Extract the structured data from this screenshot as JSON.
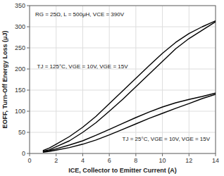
{
  "chart_data": {
    "type": "line",
    "xlabel": "ICE, Collector to Emitter Current (A)",
    "ylabel": "EOFF, Turn-Off Energy Loss (μJ)",
    "annotations": [
      "RG = 25Ω, L = 500μH, VCE = 390V",
      "TJ = 125°C, VGE = 10V, VGE = 15V",
      "TJ = 25°C, VGE = 10V, VGE = 15V"
    ],
    "x": [
      1.0,
      1.5,
      2.0,
      3.0,
      4.0,
      5.0,
      6.0,
      7.0,
      8.0,
      9.0,
      10.0,
      11.0,
      12.0,
      13.0,
      14.0
    ],
    "series": [
      {
        "color": "#000000",
        "values": [
          5,
          9,
          16,
          30,
          50,
          73,
          100,
          128,
          158,
          188,
          218,
          248,
          272,
          292,
          312
        ]
      },
      {
        "color": "#000000",
        "values": [
          7,
          13,
          22,
          40,
          62,
          88,
          118,
          148,
          178,
          208,
          237,
          263,
          284,
          300,
          314
        ]
      },
      {
        "color": "#000000",
        "values": [
          3,
          5,
          8,
          14,
          22,
          32,
          44,
          57,
          70,
          83,
          95,
          107,
          118,
          130,
          140
        ]
      },
      {
        "color": "#000000",
        "values": [
          4,
          7,
          11,
          20,
          30,
          43,
          57,
          71,
          85,
          98,
          110,
          120,
          128,
          135,
          143
        ]
      }
    ],
    "xlim": [
      0,
      14
    ],
    "ylim": [
      0,
      350
    ],
    "xticks": [
      0,
      2,
      4,
      6,
      8,
      10,
      12,
      14
    ],
    "yticks": [
      0,
      50,
      100,
      150,
      200,
      250,
      300,
      350
    ],
    "grid": true
  }
}
